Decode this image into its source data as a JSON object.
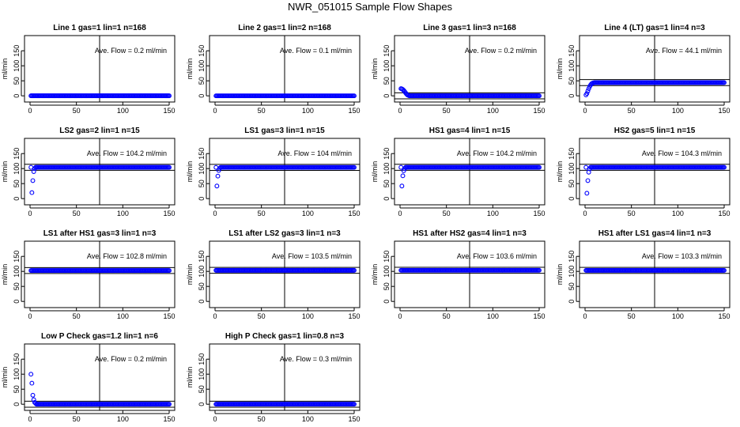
{
  "page": {
    "title": "NWR_051015  Sample Flow Shapes"
  },
  "style": {
    "point_color": "#0000ff",
    "line_color": "#000000",
    "background": "#ffffff"
  },
  "chart_data": [
    {
      "type": "scatter",
      "title": "Line 1 gas=1 lin=1 n=168",
      "annotation": "Ave. Flow = 0.2  ml/min",
      "ylabel": "ml/min",
      "xlim": [
        0,
        150
      ],
      "ylim": [
        -10,
        190
      ],
      "xticks": [
        0,
        50,
        100,
        150
      ],
      "yticks": [
        0,
        50,
        100,
        150
      ],
      "vline": 75,
      "hlines": [],
      "startup": [],
      "steady": 0.2
    },
    {
      "type": "scatter",
      "title": "Line 2 gas=1 lin=2 n=168",
      "annotation": "Ave. Flow = 0.1  ml/min",
      "ylabel": "ml/min",
      "xlim": [
        0,
        150
      ],
      "ylim": [
        -10,
        190
      ],
      "xticks": [
        0,
        50,
        100,
        150
      ],
      "yticks": [
        0,
        50,
        100,
        150
      ],
      "vline": 75,
      "hlines": [],
      "startup": [],
      "steady": 0.1
    },
    {
      "type": "scatter",
      "title": "Line 3 gas=1 lin=3 n=168",
      "annotation": "Ave. Flow = 0.2  ml/min",
      "ylabel": "ml/min",
      "xlim": [
        0,
        150
      ],
      "ylim": [
        -10,
        190
      ],
      "xticks": [
        0,
        50,
        100,
        150
      ],
      "yticks": [
        0,
        50,
        100,
        150
      ],
      "vline": 75,
      "hlines": [
        10,
        -10
      ],
      "startup": [
        [
          1,
          24
        ],
        [
          2,
          23
        ],
        [
          3,
          21
        ],
        [
          4,
          18
        ],
        [
          5,
          14
        ],
        [
          6,
          10
        ],
        [
          7,
          6
        ],
        [
          8,
          3
        ],
        [
          9,
          1.5
        ]
      ],
      "steady": 0.2
    },
    {
      "type": "scatter",
      "title": "Line 4 (LT) gas=1 lin=4 n=3",
      "annotation": "Ave. Flow = 44.1  ml/min",
      "ylabel": "ml/min",
      "xlim": [
        0,
        150
      ],
      "ylim": [
        -10,
        190
      ],
      "xticks": [
        0,
        50,
        100,
        150
      ],
      "yticks": [
        0,
        50,
        100,
        150
      ],
      "vline": 75,
      "hlines": [
        54.1,
        34.1
      ],
      "startup": [
        [
          1,
          3
        ],
        [
          2,
          8
        ],
        [
          3,
          16
        ],
        [
          4,
          24
        ],
        [
          5,
          31
        ],
        [
          6,
          36
        ],
        [
          7,
          40
        ],
        [
          8,
          42
        ],
        [
          9,
          43
        ]
      ],
      "steady": 44.1
    },
    {
      "type": "scatter",
      "title": "LS2 gas=2 lin=1 n=15",
      "annotation": "Ave. Flow = 104.2  ml/min",
      "ylabel": "ml/min",
      "xlim": [
        0,
        150
      ],
      "ylim": [
        -10,
        190
      ],
      "xticks": [
        0,
        50,
        100,
        150
      ],
      "yticks": [
        0,
        50,
        100,
        150
      ],
      "vline": 75,
      "hlines": [
        114.2,
        94.2
      ],
      "startup": [
        [
          2,
          20
        ],
        [
          3,
          60
        ],
        [
          4,
          90
        ],
        [
          5,
          100
        ]
      ],
      "steady": 104.2
    },
    {
      "type": "scatter",
      "title": "LS1 gas=3 lin=1 n=15",
      "annotation": "Ave. Flow = 104  ml/min",
      "ylabel": "ml/min",
      "xlim": [
        0,
        150
      ],
      "ylim": [
        -10,
        190
      ],
      "xticks": [
        0,
        50,
        100,
        150
      ],
      "yticks": [
        0,
        50,
        100,
        150
      ],
      "vline": 75,
      "hlines": [
        114,
        94
      ],
      "startup": [
        [
          2,
          42
        ],
        [
          3,
          75
        ],
        [
          4,
          94
        ],
        [
          5,
          101
        ]
      ],
      "steady": 104
    },
    {
      "type": "scatter",
      "title": "HS1 gas=4 lin=1 n=15",
      "annotation": "Ave. Flow = 104.2  ml/min",
      "ylabel": "ml/min",
      "xlim": [
        0,
        150
      ],
      "ylim": [
        -10,
        190
      ],
      "xticks": [
        0,
        50,
        100,
        150
      ],
      "yticks": [
        0,
        50,
        100,
        150
      ],
      "vline": 75,
      "hlines": [
        114.2,
        94.2
      ],
      "startup": [
        [
          2,
          42
        ],
        [
          3,
          76
        ],
        [
          4,
          93
        ],
        [
          5,
          100
        ]
      ],
      "steady": 104.2
    },
    {
      "type": "scatter",
      "title": "HS2 gas=5 lin=1 n=15",
      "annotation": "Ave. Flow = 104.3  ml/min",
      "ylabel": "ml/min",
      "xlim": [
        0,
        150
      ],
      "ylim": [
        -10,
        190
      ],
      "xticks": [
        0,
        50,
        100,
        150
      ],
      "yticks": [
        0,
        50,
        100,
        150
      ],
      "vline": 75,
      "hlines": [
        114.3,
        94.3
      ],
      "startup": [
        [
          2,
          18
        ],
        [
          3,
          60
        ],
        [
          4,
          88
        ],
        [
          5,
          99
        ]
      ],
      "steady": 104.3
    },
    {
      "type": "scatter",
      "title": "LS1 after HS1 gas=3 lin=1 n=3",
      "annotation": "Ave. Flow = 102.8  ml/min",
      "ylabel": "ml/min",
      "xlim": [
        0,
        150
      ],
      "ylim": [
        -10,
        190
      ],
      "xticks": [
        0,
        50,
        100,
        150
      ],
      "yticks": [
        0,
        50,
        100,
        150
      ],
      "vline": 75,
      "hlines": [
        112.8,
        92.8
      ],
      "startup": [],
      "steady": 102.8
    },
    {
      "type": "scatter",
      "title": "LS1 after LS2 gas=3 lin=1 n=3",
      "annotation": "Ave. Flow = 103.5  ml/min",
      "ylabel": "ml/min",
      "xlim": [
        0,
        150
      ],
      "ylim": [
        -10,
        190
      ],
      "xticks": [
        0,
        50,
        100,
        150
      ],
      "yticks": [
        0,
        50,
        100,
        150
      ],
      "vline": 75,
      "hlines": [
        113.5,
        93.5
      ],
      "startup": [],
      "steady": 103.5
    },
    {
      "type": "scatter",
      "title": "HS1 after HS2 gas=4 lin=1 n=3",
      "annotation": "Ave. Flow = 103.6  ml/min",
      "ylabel": "ml/min",
      "xlim": [
        0,
        150
      ],
      "ylim": [
        -10,
        190
      ],
      "xticks": [
        0,
        50,
        100,
        150
      ],
      "yticks": [
        0,
        50,
        100,
        150
      ],
      "vline": 75,
      "hlines": [
        113.6,
        93.6
      ],
      "startup": [],
      "steady": 103.6
    },
    {
      "type": "scatter",
      "title": "HS1 after LS1 gas=4 lin=1 n=3",
      "annotation": "Ave. Flow = 103.3  ml/min",
      "ylabel": "ml/min",
      "xlim": [
        0,
        150
      ],
      "ylim": [
        -10,
        190
      ],
      "xticks": [
        0,
        50,
        100,
        150
      ],
      "yticks": [
        0,
        50,
        100,
        150
      ],
      "vline": 75,
      "hlines": [
        113.3,
        93.3
      ],
      "startup": [],
      "steady": 103.3
    },
    {
      "type": "scatter",
      "title": "Low P Check gas=1.2 lin=1 n=6",
      "annotation": "Ave. Flow = 0.2  ml/min",
      "ylabel": "ml/min",
      "xlim": [
        0,
        150
      ],
      "ylim": [
        -10,
        190
      ],
      "xticks": [
        0,
        50,
        100,
        150
      ],
      "yticks": [
        0,
        50,
        100,
        150
      ],
      "vline": 75,
      "hlines": [
        10,
        -10
      ],
      "startup": [
        [
          1,
          100
        ],
        [
          2,
          70
        ],
        [
          3,
          30
        ],
        [
          4,
          15
        ],
        [
          5,
          6
        ],
        [
          6,
          3
        ]
      ],
      "steady": 0.2
    },
    {
      "type": "scatter",
      "title": "High P Check gas=1 lin=0.8 n=3",
      "annotation": "Ave. Flow = 0.3  ml/min",
      "ylabel": "ml/min",
      "xlim": [
        0,
        150
      ],
      "ylim": [
        -10,
        190
      ],
      "xticks": [
        0,
        50,
        100,
        150
      ],
      "yticks": [
        0,
        50,
        100,
        150
      ],
      "vline": 75,
      "hlines": [
        10,
        -10
      ],
      "startup": [],
      "steady": 0.3
    }
  ]
}
